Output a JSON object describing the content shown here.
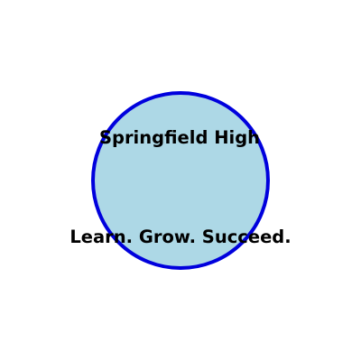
{
  "emblem": {
    "name": "Springfield High",
    "motto": "Learn. Grow. Succeed.",
    "fill_color": "#ADD8E6",
    "stroke_color": "#0000DD",
    "text_color": "#000000"
  }
}
